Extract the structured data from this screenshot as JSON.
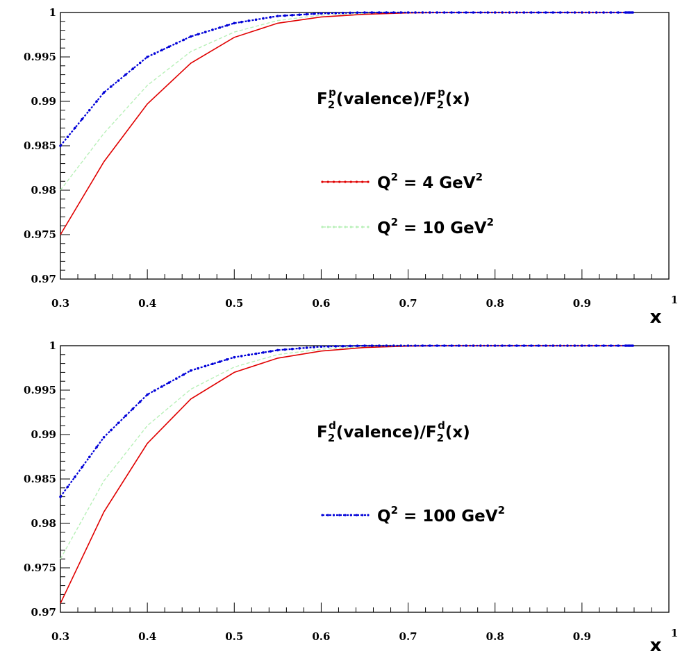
{
  "colors": {
    "q4": "#e00000",
    "q10": "#b8f0b8",
    "q100": "#0000d8"
  },
  "chart_data": [
    {
      "type": "line",
      "title_main": "F",
      "title_sub": "2",
      "title_sup": "p",
      "title_mid": "(valence)/F",
      "title_tail": "(x)",
      "xlabel": "x",
      "ylabel": "",
      "xlim": [
        0.3,
        1.0
      ],
      "ylim": [
        0.97,
        1.0
      ],
      "x_ticks": [
        "0.3",
        "0.4",
        "0.5",
        "0.6",
        "0.7",
        "0.8",
        "0.9",
        "1"
      ],
      "y_ticks": [
        "0.97",
        "0.975",
        "0.98",
        "0.985",
        "0.99",
        "0.995",
        "1"
      ],
      "legend": [
        {
          "series": "q4",
          "prefix": "Q",
          "sup1": "2",
          "mid": " = 4 GeV",
          "sup2": "2"
        },
        {
          "series": "q10",
          "prefix": "Q",
          "sup1": "2",
          "mid": " = 10 GeV",
          "sup2": "2"
        }
      ],
      "series": [
        {
          "key": "q4",
          "x": [
            0.3,
            0.35,
            0.4,
            0.45,
            0.5,
            0.55,
            0.6,
            0.65,
            0.7,
            0.75,
            0.8,
            0.85,
            0.9,
            0.95,
            0.96
          ],
          "values": [
            0.975,
            0.9832,
            0.9897,
            0.9943,
            0.9972,
            0.9988,
            0.9995,
            0.9998,
            0.99995,
            1.0,
            1.0,
            1.0,
            1.0,
            1.0,
            1.0
          ]
        },
        {
          "key": "q10",
          "x": [
            0.3,
            0.35,
            0.4,
            0.45,
            0.5,
            0.55,
            0.6,
            0.65,
            0.7,
            0.75,
            0.8,
            0.85,
            0.9,
            0.95,
            0.96
          ],
          "values": [
            0.98,
            0.9864,
            0.9918,
            0.9956,
            0.9978,
            0.9991,
            0.9997,
            0.9999,
            1.0,
            1.0,
            1.0,
            1.0,
            1.0,
            1.0,
            1.0
          ]
        },
        {
          "key": "q100",
          "x": [
            0.3,
            0.35,
            0.4,
            0.45,
            0.5,
            0.55,
            0.6,
            0.65,
            0.7,
            0.75,
            0.8,
            0.85,
            0.9,
            0.95,
            0.96
          ],
          "values": [
            0.985,
            0.991,
            0.995,
            0.9973,
            0.9988,
            0.9996,
            0.9999,
            1.0,
            1.0,
            1.0,
            1.0,
            1.0,
            1.0,
            1.0,
            1.0
          ]
        }
      ]
    },
    {
      "type": "line",
      "title_main": "F",
      "title_sub": "2",
      "title_sup": "d",
      "title_mid": "(valence)/F",
      "title_tail": "(x)",
      "xlabel": "x",
      "ylabel": "",
      "xlim": [
        0.3,
        1.0
      ],
      "ylim": [
        0.97,
        1.0
      ],
      "x_ticks": [
        "0.3",
        "0.4",
        "0.5",
        "0.6",
        "0.7",
        "0.8",
        "0.9",
        "1"
      ],
      "y_ticks": [
        "0.97",
        "0.975",
        "0.98",
        "0.985",
        "0.99",
        "0.995",
        "1"
      ],
      "legend": [
        {
          "series": "q100",
          "prefix": "Q",
          "sup1": "2",
          "mid": " = 100 GeV",
          "sup2": "2"
        }
      ],
      "series": [
        {
          "key": "q4",
          "x": [
            0.3,
            0.35,
            0.4,
            0.45,
            0.5,
            0.55,
            0.6,
            0.65,
            0.7,
            0.75,
            0.8,
            0.85,
            0.9,
            0.95,
            0.96
          ],
          "values": [
            0.971,
            0.9813,
            0.989,
            0.994,
            0.997,
            0.9986,
            0.9994,
            0.9998,
            0.99995,
            1.0,
            1.0,
            1.0,
            1.0,
            1.0,
            1.0
          ]
        },
        {
          "key": "q10",
          "x": [
            0.3,
            0.35,
            0.4,
            0.45,
            0.5,
            0.55,
            0.6,
            0.65,
            0.7,
            0.75,
            0.8,
            0.85,
            0.9,
            0.95,
            0.96
          ],
          "values": [
            0.976,
            0.9848,
            0.991,
            0.9951,
            0.9976,
            0.999,
            0.9996,
            0.9999,
            1.0,
            1.0,
            1.0,
            1.0,
            1.0,
            1.0,
            1.0
          ]
        },
        {
          "key": "q100",
          "x": [
            0.3,
            0.35,
            0.4,
            0.45,
            0.5,
            0.55,
            0.6,
            0.65,
            0.7,
            0.75,
            0.8,
            0.85,
            0.9,
            0.95,
            0.96
          ],
          "values": [
            0.983,
            0.9897,
            0.9945,
            0.9972,
            0.9987,
            0.9995,
            0.9999,
            1.0,
            1.0,
            1.0,
            1.0,
            1.0,
            1.0,
            1.0,
            1.0
          ]
        }
      ]
    }
  ]
}
